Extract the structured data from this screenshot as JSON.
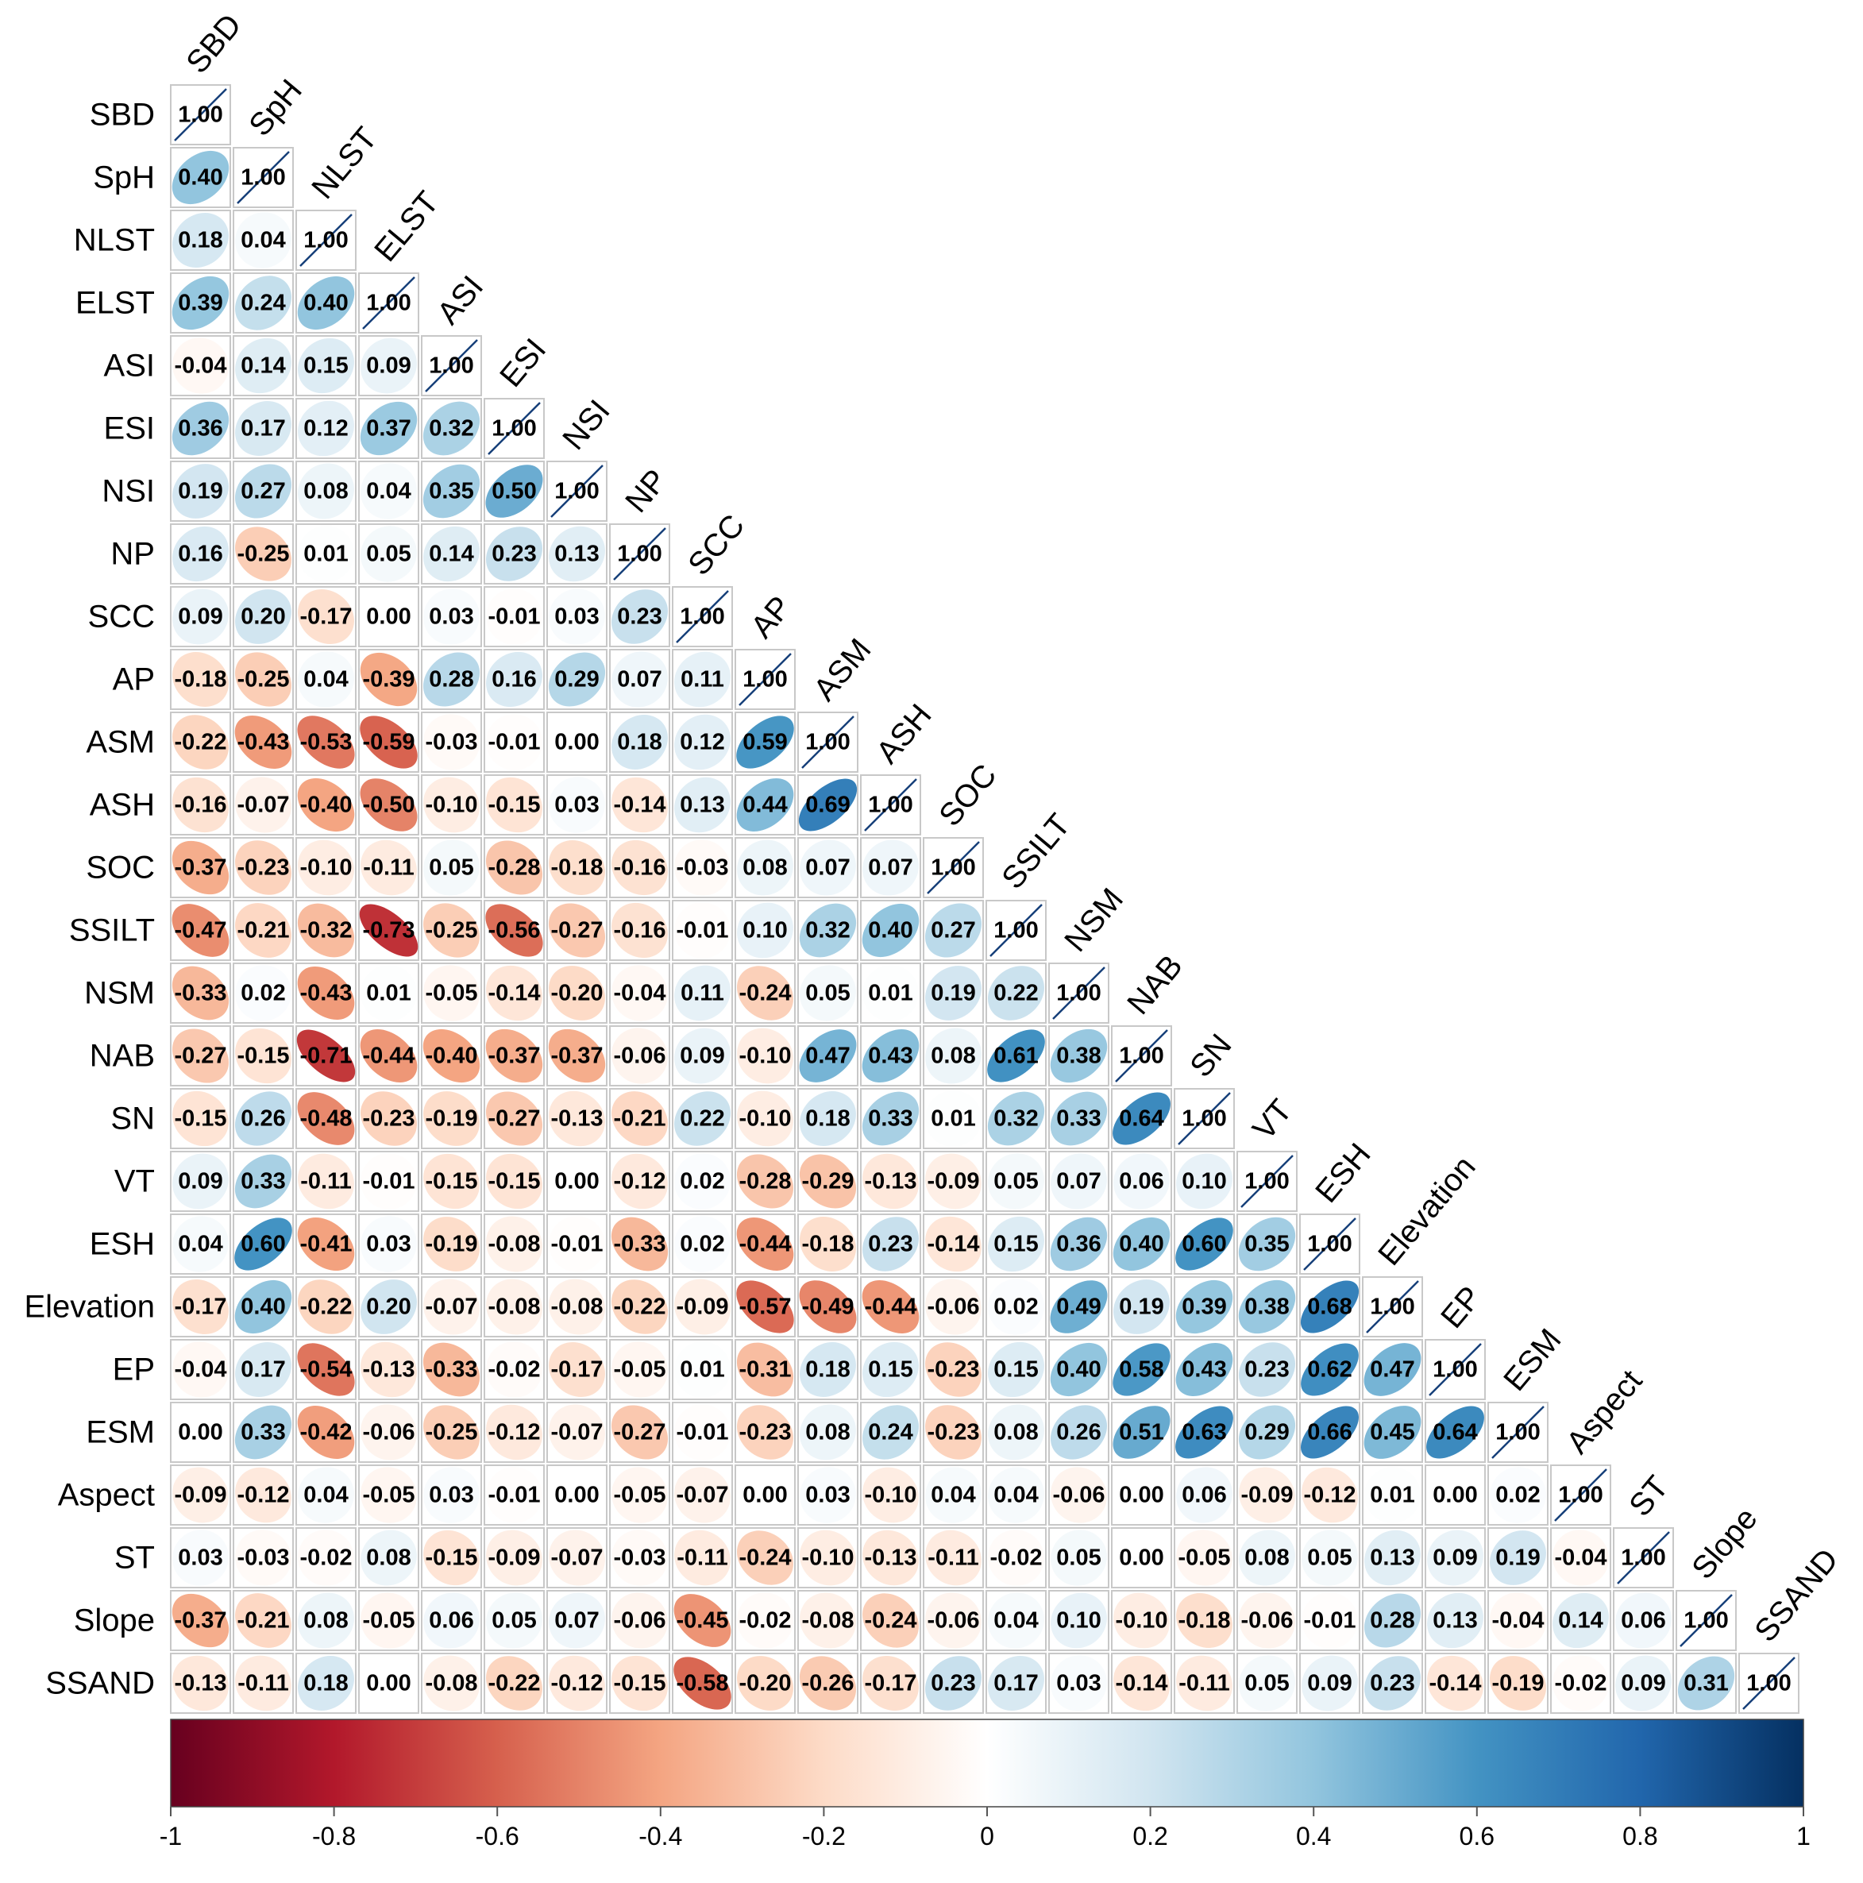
{
  "chart_data": {
    "type": "heatmap",
    "variables": [
      "SBD",
      "SpH",
      "NLST",
      "ELST",
      "ASI",
      "ESI",
      "NSI",
      "NP",
      "SCC",
      "AP",
      "ASM",
      "ASH",
      "SOC",
      "SSILT",
      "NSM",
      "NAB",
      "SN",
      "VT",
      "ESH",
      "Elevation",
      "EP",
      "ESM",
      "Aspect",
      "ST",
      "Slope",
      "SSAND"
    ],
    "matrix_lower": [
      [
        1.0
      ],
      [
        0.4,
        1.0
      ],
      [
        0.18,
        0.04,
        1.0
      ],
      [
        0.39,
        0.24,
        0.4,
        1.0
      ],
      [
        -0.04,
        0.14,
        0.15,
        0.09,
        1.0
      ],
      [
        0.36,
        0.17,
        0.12,
        0.37,
        0.32,
        1.0
      ],
      [
        0.19,
        0.27,
        0.08,
        0.04,
        0.35,
        0.5,
        1.0
      ],
      [
        0.16,
        -0.25,
        0.01,
        0.05,
        0.14,
        0.23,
        0.13,
        1.0
      ],
      [
        0.09,
        0.2,
        -0.17,
        0.0,
        0.03,
        -0.01,
        0.03,
        0.23,
        1.0
      ],
      [
        -0.18,
        -0.25,
        0.04,
        -0.39,
        0.28,
        0.16,
        0.29,
        0.07,
        0.11,
        1.0
      ],
      [
        -0.22,
        -0.43,
        -0.53,
        -0.59,
        -0.03,
        -0.01,
        0.0,
        0.18,
        0.12,
        0.59,
        1.0
      ],
      [
        -0.16,
        -0.07,
        -0.4,
        -0.5,
        -0.1,
        -0.15,
        0.03,
        -0.14,
        0.13,
        0.44,
        0.69,
        1.0
      ],
      [
        -0.37,
        -0.23,
        -0.1,
        -0.11,
        0.05,
        -0.28,
        -0.18,
        -0.16,
        -0.03,
        0.08,
        0.07,
        0.07,
        1.0
      ],
      [
        -0.47,
        -0.21,
        -0.32,
        -0.73,
        -0.25,
        -0.56,
        -0.27,
        -0.16,
        -0.01,
        0.1,
        0.32,
        0.4,
        0.27,
        1.0
      ],
      [
        -0.33,
        0.02,
        -0.43,
        0.01,
        -0.05,
        -0.14,
        -0.2,
        -0.04,
        0.11,
        -0.24,
        0.05,
        0.01,
        0.19,
        0.22,
        1.0
      ],
      [
        -0.27,
        -0.15,
        -0.71,
        -0.44,
        -0.4,
        -0.37,
        -0.37,
        -0.06,
        0.09,
        -0.1,
        0.47,
        0.43,
        0.08,
        0.61,
        0.38,
        1.0
      ],
      [
        -0.15,
        0.26,
        -0.48,
        -0.23,
        -0.19,
        -0.27,
        -0.13,
        -0.21,
        0.22,
        -0.1,
        0.18,
        0.33,
        0.01,
        0.32,
        0.33,
        0.64,
        1.0
      ],
      [
        0.09,
        0.33,
        -0.11,
        -0.01,
        -0.15,
        -0.15,
        0.0,
        -0.12,
        0.02,
        -0.28,
        -0.29,
        -0.13,
        -0.09,
        0.05,
        0.07,
        0.06,
        0.1,
        1.0
      ],
      [
        0.04,
        0.6,
        -0.41,
        0.03,
        -0.19,
        -0.08,
        -0.01,
        -0.33,
        0.02,
        -0.44,
        -0.18,
        0.23,
        -0.14,
        0.15,
        0.36,
        0.4,
        0.6,
        0.35,
        1.0
      ],
      [
        -0.17,
        0.4,
        -0.22,
        0.2,
        -0.07,
        -0.08,
        -0.08,
        -0.22,
        -0.09,
        -0.57,
        -0.49,
        -0.44,
        -0.06,
        0.02,
        0.49,
        0.19,
        0.39,
        0.38,
        0.68,
        1.0
      ],
      [
        -0.04,
        0.17,
        -0.54,
        -0.13,
        -0.33,
        -0.02,
        -0.17,
        -0.05,
        0.01,
        -0.31,
        0.18,
        0.15,
        -0.23,
        0.15,
        0.4,
        0.58,
        0.43,
        0.23,
        0.62,
        0.47,
        1.0
      ],
      [
        0.0,
        0.33,
        -0.42,
        -0.06,
        -0.25,
        -0.12,
        -0.07,
        -0.27,
        -0.01,
        -0.23,
        0.08,
        0.24,
        -0.23,
        0.08,
        0.26,
        0.51,
        0.63,
        0.29,
        0.66,
        0.45,
        0.64,
        1.0
      ],
      [
        -0.09,
        -0.12,
        0.04,
        -0.05,
        0.03,
        -0.01,
        0.0,
        -0.05,
        -0.07,
        0.0,
        0.03,
        -0.1,
        0.04,
        0.04,
        -0.06,
        0.0,
        0.06,
        -0.09,
        -0.12,
        0.01,
        0.0,
        0.02,
        1.0
      ],
      [
        0.03,
        -0.03,
        -0.02,
        0.08,
        -0.15,
        -0.09,
        -0.07,
        -0.03,
        -0.11,
        -0.24,
        -0.1,
        -0.13,
        -0.11,
        -0.02,
        0.05,
        0.0,
        -0.05,
        0.08,
        0.05,
        0.13,
        0.09,
        0.19,
        -0.04,
        1.0
      ],
      [
        -0.37,
        -0.21,
        0.08,
        -0.05,
        0.06,
        0.05,
        0.07,
        -0.06,
        -0.45,
        -0.02,
        -0.08,
        -0.24,
        -0.06,
        0.04,
        0.1,
        -0.1,
        -0.18,
        -0.06,
        -0.01,
        0.28,
        0.13,
        -0.04,
        0.14,
        0.06,
        1.0
      ],
      [
        -0.13,
        -0.11,
        0.18,
        0.0,
        -0.08,
        -0.22,
        -0.12,
        -0.15,
        -0.58,
        -0.2,
        -0.26,
        -0.17,
        0.23,
        0.17,
        0.03,
        -0.14,
        -0.11,
        0.05,
        0.09,
        0.23,
        -0.14,
        -0.19,
        -0.02,
        0.09,
        0.31,
        1.0
      ]
    ],
    "colorbar": {
      "range": [
        -1,
        1
      ],
      "ticks": [
        "-1",
        "-0.8",
        "-0.6",
        "-0.4",
        "-0.2",
        "0",
        "0.2",
        "0.4",
        "0.6",
        "0.8",
        "1"
      ],
      "colors": [
        "#67001F",
        "#B2182B",
        "#D6604D",
        "#F4A582",
        "#FDDBC7",
        "#FFFFFF",
        "#D1E5F0",
        "#92C5DE",
        "#4393C3",
        "#2166AC",
        "#053061"
      ]
    },
    "grid": true,
    "legend": "bottom"
  }
}
